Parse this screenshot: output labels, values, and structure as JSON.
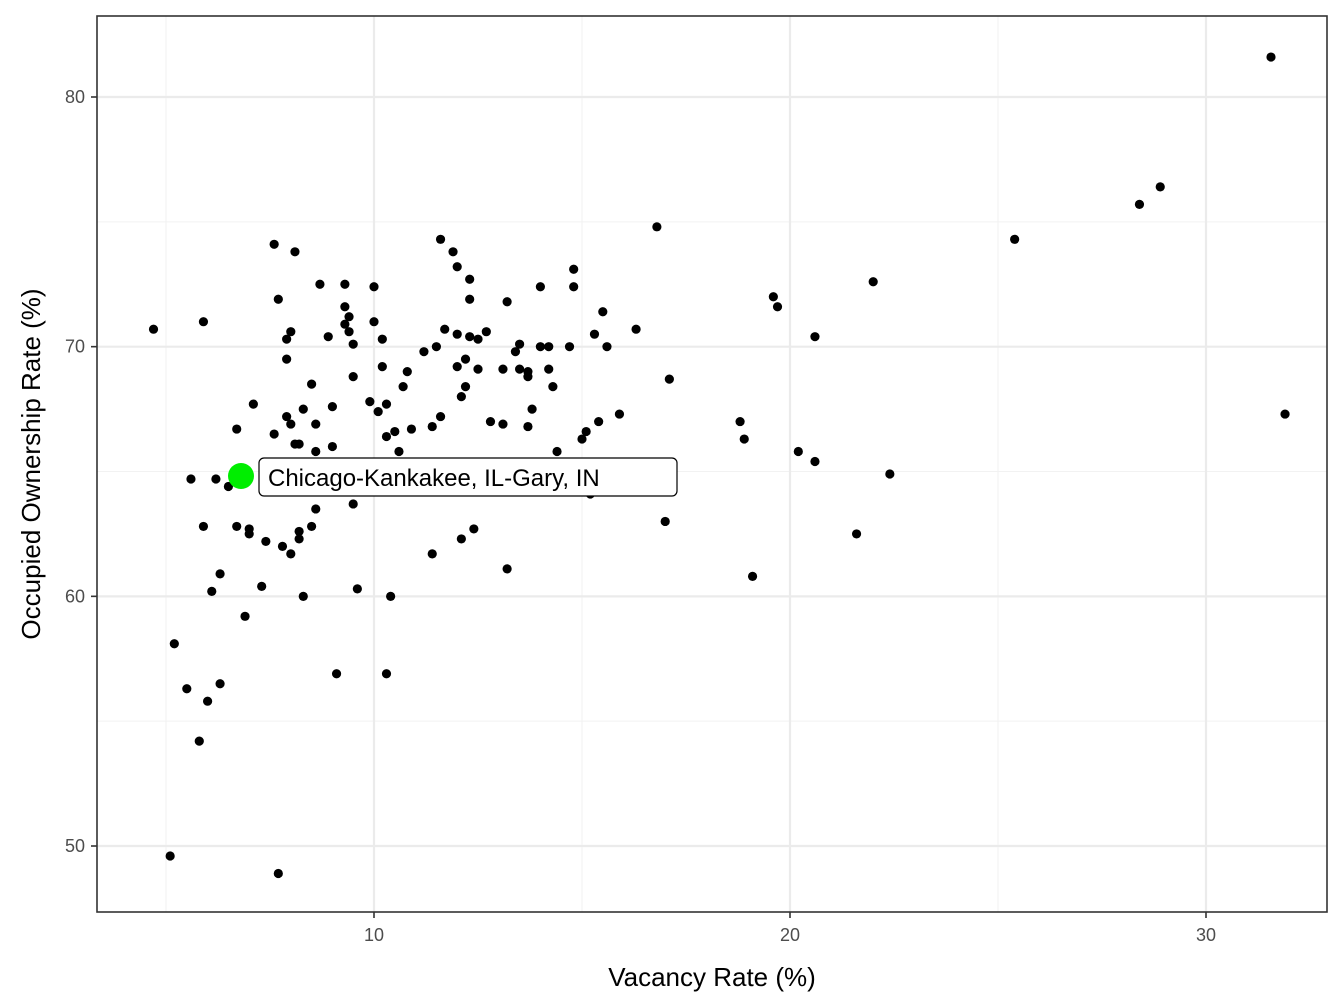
{
  "chart_data": {
    "type": "scatter",
    "title": "",
    "xlabel": "Vacancy Rate (%)",
    "ylabel": "Occupied Ownership Rate (%)",
    "xlim": [
      3.3,
      33.0
    ],
    "ylim": [
      47.3,
      83.3
    ],
    "x_ticks": [
      10,
      20,
      30
    ],
    "y_ticks": [
      50,
      60,
      70,
      80
    ],
    "x_tick_labels": [
      "10",
      "20",
      "30"
    ],
    "y_tick_labels": [
      "50",
      "60",
      "70",
      "80"
    ],
    "grid": true,
    "legend": null,
    "point_color": "#000000",
    "highlight": {
      "label": "Chicago-Kankakee, IL-Gary, IN",
      "x": 6.8,
      "y": 64.9,
      "color": "#00ee00"
    },
    "points": [
      [
        4.7,
        70.7
      ],
      [
        5.1,
        49.6
      ],
      [
        5.2,
        58.1
      ],
      [
        5.5,
        56.3
      ],
      [
        5.6,
        64.7
      ],
      [
        5.8,
        54.2
      ],
      [
        5.9,
        62.8
      ],
      [
        5.9,
        71.0
      ],
      [
        6.0,
        55.8
      ],
      [
        6.1,
        60.2
      ],
      [
        6.2,
        64.7
      ],
      [
        6.3,
        56.5
      ],
      [
        6.3,
        60.9
      ],
      [
        6.5,
        64.4
      ],
      [
        6.7,
        66.7
      ],
      [
        6.7,
        62.8
      ],
      [
        6.9,
        59.2
      ],
      [
        7.0,
        62.7
      ],
      [
        7.0,
        62.5
      ],
      [
        7.1,
        67.7
      ],
      [
        7.3,
        60.4
      ],
      [
        7.4,
        62.2
      ],
      [
        7.6,
        74.1
      ],
      [
        7.6,
        66.5
      ],
      [
        7.7,
        48.9
      ],
      [
        7.7,
        71.9
      ],
      [
        7.8,
        62.0
      ],
      [
        7.9,
        70.3
      ],
      [
        7.9,
        69.5
      ],
      [
        7.9,
        67.2
      ],
      [
        8.0,
        70.6
      ],
      [
        8.0,
        61.7
      ],
      [
        8.0,
        66.9
      ],
      [
        8.1,
        73.8
      ],
      [
        8.1,
        66.1
      ],
      [
        8.2,
        62.6
      ],
      [
        8.2,
        62.3
      ],
      [
        8.2,
        66.1
      ],
      [
        8.3,
        60.0
      ],
      [
        8.3,
        67.5
      ],
      [
        8.5,
        62.8
      ],
      [
        8.5,
        68.5
      ],
      [
        8.6,
        66.9
      ],
      [
        8.6,
        63.5
      ],
      [
        8.6,
        65.8
      ],
      [
        8.7,
        72.5
      ],
      [
        8.9,
        70.4
      ],
      [
        9.0,
        67.6
      ],
      [
        9.0,
        66.0
      ],
      [
        9.1,
        56.9
      ],
      [
        9.3,
        72.5
      ],
      [
        9.3,
        71.6
      ],
      [
        9.3,
        70.9
      ],
      [
        9.4,
        70.6
      ],
      [
        9.4,
        71.2
      ],
      [
        9.5,
        70.1
      ],
      [
        9.5,
        68.8
      ],
      [
        9.5,
        63.7
      ],
      [
        9.6,
        60.3
      ],
      [
        9.9,
        67.8
      ],
      [
        10.0,
        72.4
      ],
      [
        10.0,
        71.0
      ],
      [
        10.1,
        67.4
      ],
      [
        10.2,
        70.3
      ],
      [
        10.2,
        69.2
      ],
      [
        10.3,
        66.4
      ],
      [
        10.3,
        67.7
      ],
      [
        10.3,
        56.9
      ],
      [
        10.4,
        60.0
      ],
      [
        10.5,
        66.6
      ],
      [
        10.6,
        65.8
      ],
      [
        10.7,
        68.4
      ],
      [
        10.8,
        69.0
      ],
      [
        10.9,
        66.7
      ],
      [
        11.2,
        69.8
      ],
      [
        11.4,
        66.8
      ],
      [
        11.4,
        61.7
      ],
      [
        11.5,
        70.0
      ],
      [
        11.6,
        74.3
      ],
      [
        11.6,
        67.2
      ],
      [
        11.7,
        70.7
      ],
      [
        11.9,
        73.8
      ],
      [
        12.0,
        69.2
      ],
      [
        12.0,
        70.5
      ],
      [
        12.0,
        73.2
      ],
      [
        12.1,
        68.0
      ],
      [
        12.1,
        62.3
      ],
      [
        12.2,
        68.4
      ],
      [
        12.2,
        69.5
      ],
      [
        12.3,
        72.7
      ],
      [
        12.3,
        71.9
      ],
      [
        12.3,
        70.4
      ],
      [
        12.4,
        62.7
      ],
      [
        12.5,
        70.3
      ],
      [
        12.5,
        69.1
      ],
      [
        12.7,
        70.6
      ],
      [
        12.8,
        67.0
      ],
      [
        13.1,
        69.1
      ],
      [
        13.1,
        66.9
      ],
      [
        13.2,
        71.8
      ],
      [
        13.2,
        61.1
      ],
      [
        13.4,
        69.8
      ],
      [
        13.5,
        70.1
      ],
      [
        13.5,
        69.1
      ],
      [
        13.7,
        69.0
      ],
      [
        13.7,
        68.8
      ],
      [
        13.7,
        66.8
      ],
      [
        13.8,
        67.5
      ],
      [
        14.0,
        72.4
      ],
      [
        14.0,
        70.0
      ],
      [
        14.2,
        70.0
      ],
      [
        14.2,
        69.1
      ],
      [
        14.3,
        68.4
      ],
      [
        14.4,
        65.8
      ],
      [
        14.7,
        70.0
      ],
      [
        14.8,
        72.4
      ],
      [
        14.8,
        73.1
      ],
      [
        15.0,
        66.3
      ],
      [
        15.1,
        66.6
      ],
      [
        15.2,
        64.1
      ],
      [
        15.3,
        70.5
      ],
      [
        15.4,
        67.0
      ],
      [
        15.5,
        71.4
      ],
      [
        15.6,
        70.0
      ],
      [
        15.9,
        67.3
      ],
      [
        16.3,
        70.7
      ],
      [
        16.8,
        74.8
      ],
      [
        17.0,
        63.0
      ],
      [
        17.1,
        68.7
      ],
      [
        18.8,
        67.0
      ],
      [
        18.9,
        66.3
      ],
      [
        19.1,
        60.8
      ],
      [
        19.6,
        72.0
      ],
      [
        19.7,
        71.6
      ],
      [
        20.2,
        65.8
      ],
      [
        20.6,
        65.4
      ],
      [
        20.6,
        70.4
      ],
      [
        21.6,
        62.5
      ],
      [
        22.0,
        72.6
      ],
      [
        22.4,
        64.9
      ],
      [
        25.4,
        74.3
      ],
      [
        28.4,
        75.7
      ],
      [
        28.9,
        76.4
      ],
      [
        31.9,
        67.3
      ],
      [
        34.0,
        81.6
      ]
    ]
  },
  "plot": {
    "panel_border_color": "#333333",
    "grid_major_color": "#ebebeb",
    "grid_minor_color": "#f2f2f2",
    "background": "#ffffff"
  }
}
